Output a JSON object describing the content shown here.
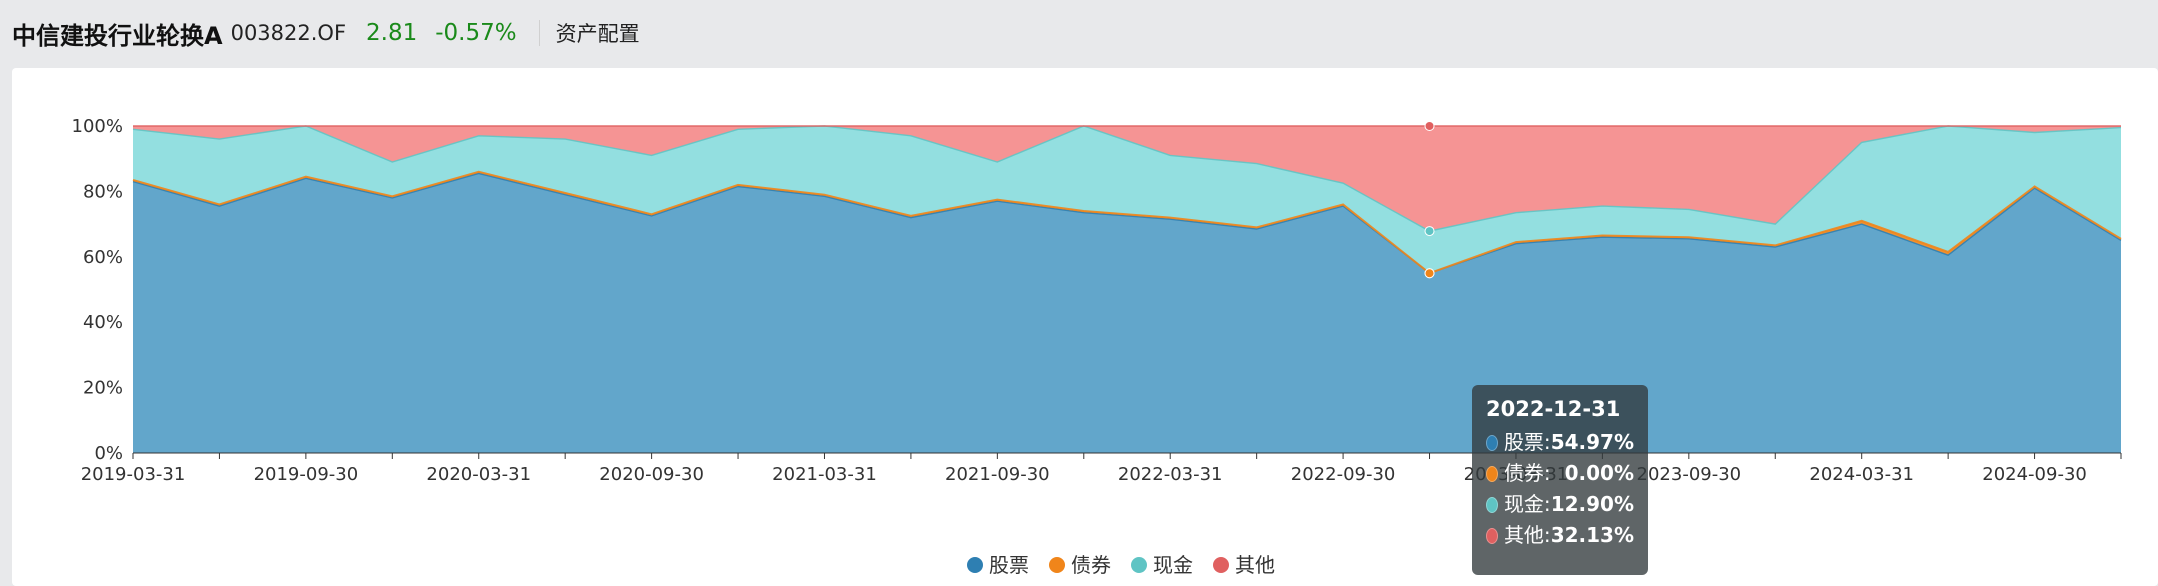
{
  "header": {
    "fund_name": "中信建投行业轮换A",
    "fund_code": "003822.OF",
    "nav": "2.81",
    "change": "-0.57%",
    "section": "资产配置"
  },
  "colors": {
    "stock": "#2e7fb2",
    "bond": "#f0851a",
    "cash": "#5fc4c4",
    "other": "#e06060",
    "stock_fill": "#62a6cb",
    "cash_fill": "#93dfe0",
    "other_fill": "#f59494",
    "change_text": "#1a8a1a"
  },
  "tooltip": {
    "date": "2022-12-31",
    "rows": [
      {
        "label": "股票:",
        "value": "54.97%",
        "color": "#2e7fb2"
      },
      {
        "label": "债券:",
        "value": "  0.00%",
        "color": "#f0851a"
      },
      {
        "label": "现金:",
        "value": "12.90%",
        "color": "#5fc4c4"
      },
      {
        "label": "其他:",
        "value": "32.13%",
        "color": "#e06060"
      }
    ]
  },
  "chart_data": {
    "type": "area",
    "stacked": true,
    "x": [
      "2019-03-31",
      "2019-06-30",
      "2019-09-30",
      "2019-12-31",
      "2020-03-31",
      "2020-06-30",
      "2020-09-30",
      "2020-12-31",
      "2021-03-31",
      "2021-06-30",
      "2021-09-30",
      "2021-12-31",
      "2022-03-31",
      "2022-06-30",
      "2022-09-30",
      "2022-12-31",
      "2023-03-31",
      "2023-06-30",
      "2023-09-30",
      "2023-12-31",
      "2024-03-31",
      "2024-06-30",
      "2024-09-30",
      "2024-12-31"
    ],
    "x_tick_labels": [
      "2019-03-31",
      "2019-09-30",
      "2020-03-31",
      "2020-09-30",
      "2021-03-31",
      "2021-09-30",
      "2022-03-31",
      "2022-09-30",
      "2023-03-31",
      "2023-09-30",
      "2024-03-31",
      "2024-09-30"
    ],
    "y_tick_labels": [
      "0%",
      "20%",
      "40%",
      "60%",
      "80%",
      "100%"
    ],
    "ylim": [
      0,
      100
    ],
    "series": [
      {
        "name": "股票",
        "values": [
          83,
          75.5,
          84,
          78,
          85.5,
          79,
          72.5,
          81.5,
          78.5,
          72,
          77,
          73.5,
          71.5,
          68.5,
          75.5,
          54.97,
          64,
          66,
          65.5,
          63,
          70,
          60.5,
          81,
          65
        ]
      },
      {
        "name": "债券",
        "values": [
          0.5,
          0.5,
          0.5,
          0.5,
          0.5,
          0.5,
          0.5,
          0.5,
          0.5,
          0.5,
          0.5,
          0.5,
          0.5,
          0.5,
          0.5,
          0.0,
          0.5,
          0.5,
          0.5,
          0.5,
          1,
          1,
          0.5,
          0.5
        ]
      },
      {
        "name": "现金",
        "values": [
          15.5,
          20,
          15.5,
          10.5,
          11,
          16.5,
          18,
          17,
          21,
          24.5,
          11.5,
          26,
          19,
          19.5,
          6.5,
          12.9,
          9,
          9,
          8.5,
          6.5,
          24,
          38.5,
          16.5,
          34
        ]
      },
      {
        "name": "其他",
        "values": [
          1,
          4,
          0,
          11,
          3,
          4,
          9,
          1,
          0,
          3,
          11,
          0,
          9,
          11.5,
          17.5,
          32.13,
          26.5,
          24.5,
          25.5,
          30,
          5,
          0,
          2,
          0.5
        ]
      }
    ],
    "legend": [
      "股票",
      "债券",
      "现金",
      "其他"
    ],
    "legend_position": "bottom-center",
    "highlight_index": 15,
    "grid": true
  }
}
